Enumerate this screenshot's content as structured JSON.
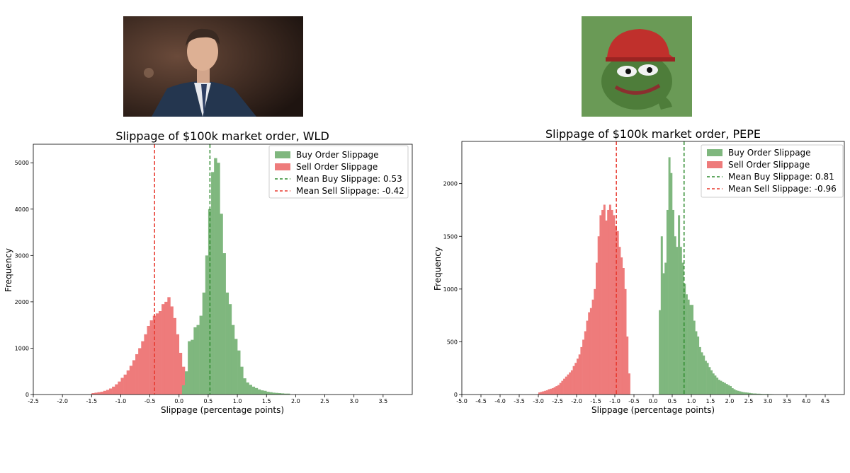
{
  "chart_data": [
    {
      "type": "histogram",
      "title": "Slippage of $100k market order, WLD",
      "xlabel": "Slippage (percentage points)",
      "ylabel": "Frequency",
      "xlim": [
        -2.5,
        4.0
      ],
      "ylim": [
        0,
        5400
      ],
      "xticks": [
        -2.5,
        -2.0,
        -1.5,
        -1.0,
        -0.5,
        0.0,
        0.5,
        1.0,
        1.5,
        2.0,
        2.5,
        3.0,
        3.5
      ],
      "xtick_labels": [
        "-2.5",
        "-2.0",
        "-1.5",
        "-1.0",
        "-0.5",
        "0.0",
        "0.5",
        "1.0",
        "1.5",
        "2.0",
        "2.5",
        "3.0",
        "3.5"
      ],
      "yticks": [
        0,
        1000,
        2000,
        3000,
        4000,
        5000
      ],
      "ytick_labels": [
        "0",
        "1000",
        "2000",
        "3000",
        "4000",
        "5000"
      ],
      "legend_position": "top-right",
      "legend": {
        "buy": "Buy Order Slippage",
        "sell": "Sell Order Slippage",
        "mean_buy": "Mean Buy Slippage: 0.53",
        "mean_sell": "Mean Sell Slippage: -0.42"
      },
      "mean_buy": 0.53,
      "mean_sell": -0.42,
      "colors": {
        "buy": "#7fb77e",
        "sell": "#ee7b7b",
        "buy_line": "#2e8b2e",
        "sell_line": "#e8382d"
      },
      "bin_width": 0.05,
      "series": [
        {
          "name": "Sell Order Slippage",
          "bin_start": -1.5,
          "values": [
            30,
            40,
            50,
            60,
            80,
            100,
            130,
            170,
            220,
            280,
            360,
            430,
            520,
            620,
            740,
            870,
            1000,
            1150,
            1300,
            1480,
            1600,
            1700,
            1750,
            1800,
            1950,
            2000,
            2100,
            1900,
            1650,
            1300,
            900,
            600,
            300,
            120,
            30
          ]
        },
        {
          "name": "Buy Order Slippage",
          "bin_start": 0.05,
          "values": [
            200,
            500,
            1150,
            1180,
            1450,
            1500,
            1700,
            2200,
            3000,
            4000,
            4800,
            5100,
            5000,
            3900,
            3050,
            2200,
            1950,
            1500,
            1200,
            950,
            600,
            350,
            260,
            210,
            170,
            140,
            110,
            90,
            80,
            60,
            50,
            40,
            35,
            30,
            25,
            20,
            20
          ]
        }
      ]
    },
    {
      "type": "histogram",
      "title": "Slippage of $100k market order, PEPE",
      "xlabel": "Slippage (percentage points)",
      "ylabel": "Frequency",
      "xlim": [
        -5.0,
        5.0
      ],
      "ylim": [
        0,
        2400
      ],
      "xticks": [
        -5.0,
        -4.5,
        -4.0,
        -3.5,
        -3.0,
        -2.5,
        -2.0,
        -1.5,
        -1.0,
        -0.5,
        0.0,
        0.5,
        1.0,
        1.5,
        2.0,
        2.5,
        3.0,
        3.5,
        4.0,
        4.5
      ],
      "xtick_labels": [
        "-5.0",
        "-4.5",
        "-4.0",
        "-3.5",
        "-3.0",
        "-2.5",
        "-2.0",
        "-1.5",
        "-1.0",
        "-0.5",
        "0.0",
        "0.5",
        "1.0",
        "1.5",
        "2.0",
        "2.5",
        "3.0",
        "3.5",
        "4.0",
        "4.5"
      ],
      "yticks": [
        0,
        500,
        1000,
        1500,
        2000
      ],
      "ytick_labels": [
        "0",
        "500",
        "1000",
        "1500",
        "2000"
      ],
      "legend_position": "top-right",
      "legend": {
        "buy": "Buy Order Slippage",
        "sell": "Sell Order Slippage",
        "mean_buy": "Mean Buy Slippage: 0.81",
        "mean_sell": "Mean Sell Slippage: -0.96"
      },
      "mean_buy": 0.81,
      "mean_sell": -0.96,
      "colors": {
        "buy": "#7fb77e",
        "sell": "#ee7b7b",
        "buy_line": "#2e8b2e",
        "sell_line": "#e8382d"
      },
      "bin_width": 0.05,
      "series": [
        {
          "name": "Sell Order Slippage",
          "bin_start": -3.0,
          "values": [
            20,
            25,
            30,
            35,
            40,
            50,
            55,
            60,
            70,
            80,
            90,
            110,
            130,
            150,
            170,
            190,
            210,
            230,
            270,
            300,
            340,
            380,
            450,
            520,
            600,
            700,
            780,
            820,
            900,
            1000,
            1250,
            1500,
            1700,
            1750,
            1800,
            1650,
            1750,
            1800,
            1750,
            1700,
            1600,
            1550,
            1400,
            1300,
            1200,
            1000,
            550,
            200
          ]
        },
        {
          "name": "Buy Order Slippage",
          "bin_start": 0.15,
          "values": [
            800,
            1500,
            1150,
            1250,
            1750,
            2250,
            2100,
            1750,
            1500,
            1400,
            1700,
            1400,
            1250,
            1050,
            950,
            900,
            850,
            850,
            700,
            600,
            550,
            450,
            400,
            370,
            320,
            300,
            260,
            230,
            200,
            180,
            160,
            140,
            130,
            120,
            110,
            100,
            90,
            80,
            60,
            50,
            40,
            35,
            30,
            25,
            22,
            20,
            18,
            15,
            12,
            10,
            10,
            8,
            8,
            6,
            5,
            5,
            5,
            4,
            4,
            3
          ]
        }
      ]
    }
  ]
}
